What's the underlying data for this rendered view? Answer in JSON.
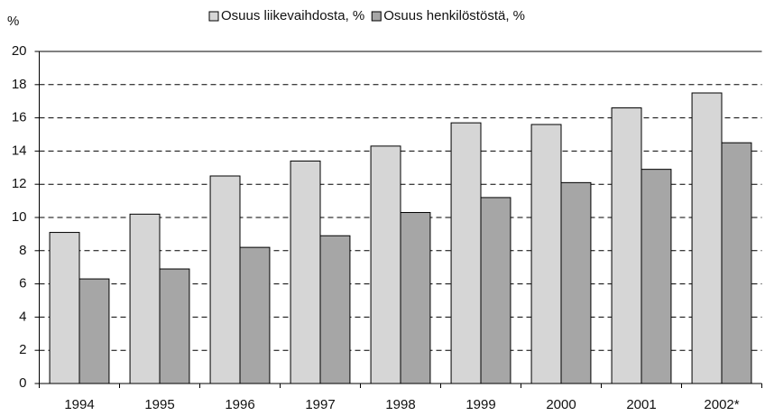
{
  "chart_data": {
    "type": "bar",
    "y_label": "%",
    "categories": [
      "1994",
      "1995",
      "1996",
      "1997",
      "1998",
      "1999",
      "2000",
      "2001",
      "2002*"
    ],
    "series": [
      {
        "name": "Osuus liikevaihdosta, %",
        "color": "#d6d6d6",
        "values": [
          9.1,
          10.2,
          12.5,
          13.4,
          14.3,
          15.7,
          15.6,
          16.6,
          17.5
        ]
      },
      {
        "name": "Osuus henkilöstöstä, %",
        "color": "#a6a6a6",
        "values": [
          6.3,
          6.9,
          8.2,
          8.9,
          10.3,
          11.2,
          12.1,
          12.9,
          14.5
        ]
      }
    ],
    "ylim": [
      0,
      20
    ],
    "yticks": [
      0,
      2,
      4,
      6,
      8,
      10,
      12,
      14,
      16,
      18,
      20
    ],
    "grid": true,
    "legend": "top"
  }
}
